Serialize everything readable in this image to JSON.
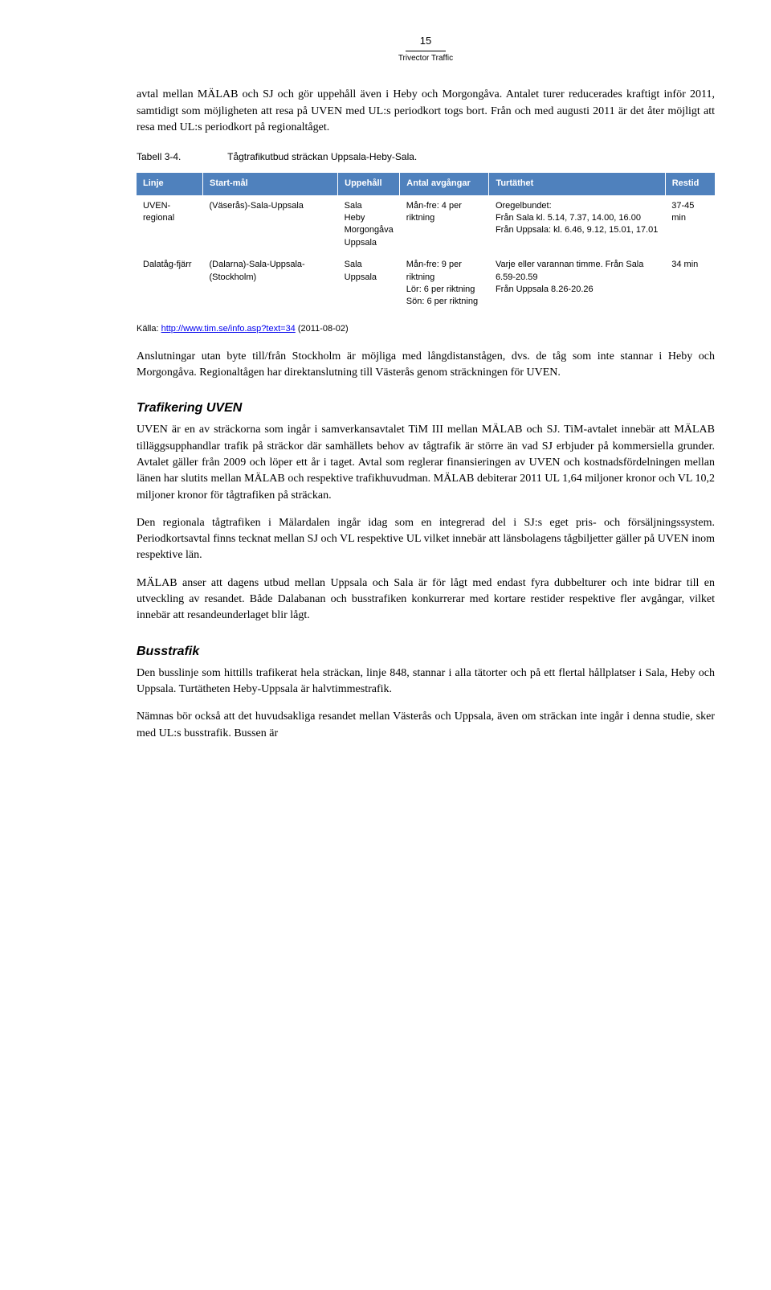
{
  "header": {
    "page_number": "15",
    "brand": "Trivector Traffic"
  },
  "intro_paragraph": "avtal mellan MÄLAB och SJ och gör uppehåll även i Heby och Morgongåva. Antalet turer reducerades kraftigt inför 2011, samtidigt som möjligheten att resa på UVEN med UL:s periodkort togs bort. Från och med augusti 2011 är det åter möjligt att resa med UL:s periodkort på regionaltåget.",
  "table_caption": {
    "label": "Tabell 3-4.",
    "text": "Tågtrafikutbud sträckan Uppsala-Heby-Sala."
  },
  "table": {
    "headers": [
      "Linje",
      "Start-mål",
      "Uppehåll",
      "Antal avgångar",
      "Turtäthet",
      "Restid"
    ],
    "rows": [
      {
        "linje": "UVEN-regional",
        "startmal": "(Väserås)-Sala-Uppsala",
        "uppehall": "Sala\nHeby\nMorgongåva\nUppsala",
        "avgangar": "Mån-fre: 4 per riktning",
        "turtathet": "Oregelbundet:\nFrån Sala kl. 5.14, 7.37, 14.00, 16.00\nFrån Uppsala: kl. 6.46, 9.12, 15.01, 17.01",
        "restid": "37-45 min"
      },
      {
        "linje": "Dalatåg-fjärr",
        "startmal": "(Dalarna)-Sala-Uppsala-(Stockholm)",
        "uppehall": "Sala\nUppsala",
        "avgangar": "Mån-fre: 9 per riktning\nLör: 6 per riktning\nSön: 6 per riktning",
        "turtathet": "Varje eller varannan timme. Från Sala 6.59-20.59\nFrån Uppsala 8.26-20.26",
        "restid": "34 min"
      }
    ]
  },
  "source": {
    "prefix": "Källa: ",
    "link_text": "http://www.tim.se/info.asp?text=34",
    "suffix": " (2011-08-02)"
  },
  "paragraph_after_table": "Anslutningar utan byte till/från Stockholm är möjliga med långdistanstågen, dvs. de tåg som inte stannar i Heby och Morgongåva. Regionaltågen har direktanslutning till Västerås genom sträckningen för UVEN.",
  "section_uven": {
    "title": "Trafikering UVEN",
    "p1": "UVEN är en av sträckorna som ingår i samverkansavtalet TiM III mellan MÄLAB och SJ. TiM-avtalet innebär att MÄLAB tilläggsupphandlar trafik på sträckor där samhällets behov av tågtrafik är större än vad SJ erbjuder på kommersiella grunder. Avtalet gäller från 2009 och löper ett år i taget. Avtal som reglerar finansieringen av UVEN och kostnadsfördelningen mellan länen har slutits mellan MÄLAB och respektive trafikhuvudman. MÄLAB debiterar 2011 UL 1,64 miljoner kronor och VL 10,2 miljoner kronor för tågtrafiken på sträckan.",
    "p2": "Den regionala tågtrafiken i Mälardalen ingår idag som en integrerad del i SJ:s eget pris- och försäljningssystem. Periodkortsavtal finns tecknat mellan SJ och VL respektive UL vilket innebär att länsbolagens tågbiljetter gäller på UVEN inom respektive län.",
    "p3": "MÄLAB anser att dagens utbud mellan Uppsala och Sala är för lågt med endast fyra dubbelturer och inte bidrar till en utveckling av resandet. Både Dalabanan och busstrafiken konkurrerar med kortare restider respektive fler avgångar, vilket innebär att resandeunderlaget blir lågt."
  },
  "section_buss": {
    "title": "Busstrafik",
    "p1": "Den busslinje som hittills trafikerat hela sträckan, linje 848, stannar i alla tätorter och på ett flertal hållplatser i Sala, Heby och Uppsala. Turtätheten Heby-Uppsala är halvtimmestrafik.",
    "p2": "Nämnas bör också att det huvudsakliga resandet mellan Västerås och Uppsala, även om sträckan inte ingår i denna studie, sker med UL:s busstrafik. Bussen är"
  }
}
